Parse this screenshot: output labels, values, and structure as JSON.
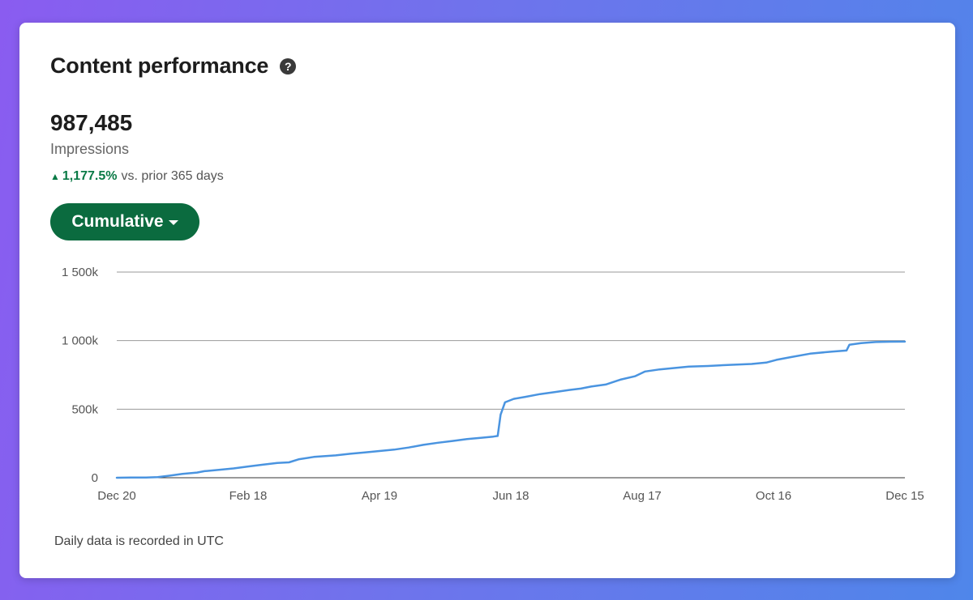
{
  "card": {
    "title": "Content performance",
    "help_glyph": "?",
    "metric_value": "987,485",
    "metric_label": "Impressions",
    "change_value": "1,177.5%",
    "change_text": "vs. prior 365 days",
    "mode_button_label": "Cumulative",
    "footnote": "Daily data is recorded in UTC"
  },
  "colors": {
    "accent": "#0b6b3f",
    "positive": "#0a7a46",
    "series": "#4a94e0",
    "grid": "#9a9a9a",
    "axis": "#333333"
  },
  "icons": [
    "help-icon",
    "triangle-up-icon",
    "caret-down-icon"
  ],
  "chart_data": {
    "type": "line",
    "x_labels": [
      "Dec 20",
      "Feb 18",
      "Apr 19",
      "Jun 18",
      "Aug 17",
      "Oct 16",
      "Dec 15"
    ],
    "y_ticks": [
      0,
      500,
      1000,
      1500
    ],
    "y_tick_labels": [
      "0",
      "500k",
      "1 000k",
      "1 500k"
    ],
    "ylim": [
      0,
      1500
    ],
    "y_unit": "k",
    "grid": "horizontal",
    "series": [
      {
        "points": [
          [
            0,
            0
          ],
          [
            10,
            1
          ],
          [
            20,
            2
          ],
          [
            28,
            5
          ],
          [
            36,
            15
          ],
          [
            45,
            28
          ],
          [
            55,
            38
          ],
          [
            60,
            48
          ],
          [
            70,
            58
          ],
          [
            80,
            68
          ],
          [
            90,
            82
          ],
          [
            100,
            95
          ],
          [
            110,
            108
          ],
          [
            118,
            112
          ],
          [
            125,
            135
          ],
          [
            135,
            152
          ],
          [
            150,
            163
          ],
          [
            160,
            175
          ],
          [
            170,
            185
          ],
          [
            180,
            195
          ],
          [
            190,
            205
          ],
          [
            200,
            220
          ],
          [
            210,
            240
          ],
          [
            220,
            255
          ],
          [
            230,
            268
          ],
          [
            240,
            282
          ],
          [
            250,
            292
          ],
          [
            258,
            300
          ],
          [
            261,
            305
          ],
          [
            263,
            460
          ],
          [
            266,
            550
          ],
          [
            272,
            575
          ],
          [
            280,
            590
          ],
          [
            290,
            610
          ],
          [
            300,
            625
          ],
          [
            310,
            640
          ],
          [
            318,
            650
          ],
          [
            325,
            665
          ],
          [
            335,
            680
          ],
          [
            345,
            715
          ],
          [
            355,
            740
          ],
          [
            362,
            775
          ],
          [
            372,
            790
          ],
          [
            382,
            800
          ],
          [
            392,
            810
          ],
          [
            405,
            815
          ],
          [
            420,
            823
          ],
          [
            435,
            830
          ],
          [
            445,
            840
          ],
          [
            452,
            860
          ],
          [
            462,
            880
          ],
          [
            475,
            905
          ],
          [
            490,
            920
          ],
          [
            500,
            928
          ],
          [
            502,
            970
          ],
          [
            510,
            982
          ],
          [
            520,
            990
          ],
          [
            530,
            992
          ],
          [
            540,
            993
          ]
        ]
      }
    ],
    "xlim": [
      0,
      540
    ]
  }
}
